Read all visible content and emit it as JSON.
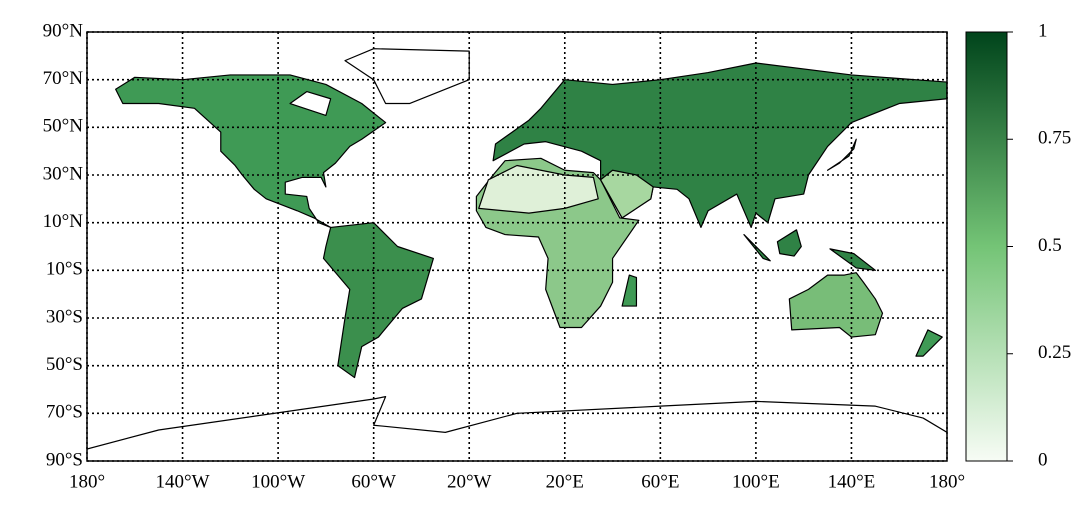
{
  "chart_data": {
    "type": "map",
    "xlim": [
      -180,
      180
    ],
    "ylim": [
      -90,
      90
    ],
    "xticks": [
      {
        "value": -180,
        "label": "180°"
      },
      {
        "value": -140,
        "label": "140°W"
      },
      {
        "value": -100,
        "label": "100°W"
      },
      {
        "value": -60,
        "label": "60°W"
      },
      {
        "value": -20,
        "label": "20°W"
      },
      {
        "value": 20,
        "label": "20°E"
      },
      {
        "value": 60,
        "label": "60°E"
      },
      {
        "value": 100,
        "label": "100°E"
      },
      {
        "value": 140,
        "label": "140°E"
      },
      {
        "value": 180,
        "label": "180°"
      }
    ],
    "yticks": [
      {
        "value": 90,
        "label": "90°N"
      },
      {
        "value": 70,
        "label": "70°N"
      },
      {
        "value": 50,
        "label": "50°N"
      },
      {
        "value": 30,
        "label": "30°N"
      },
      {
        "value": 10,
        "label": "10°N"
      },
      {
        "value": -10,
        "label": "10°S"
      },
      {
        "value": -30,
        "label": "30°S"
      },
      {
        "value": -50,
        "label": "50°S"
      },
      {
        "value": -70,
        "label": "70°S"
      },
      {
        "value": -90,
        "label": "90°S"
      }
    ],
    "grid": true,
    "colorbar": {
      "lim": [
        0,
        1
      ],
      "ticks": [
        0,
        0.25,
        0.5,
        0.75,
        1
      ],
      "colors": [
        "#f7fcf5",
        "#00441b"
      ]
    }
  }
}
